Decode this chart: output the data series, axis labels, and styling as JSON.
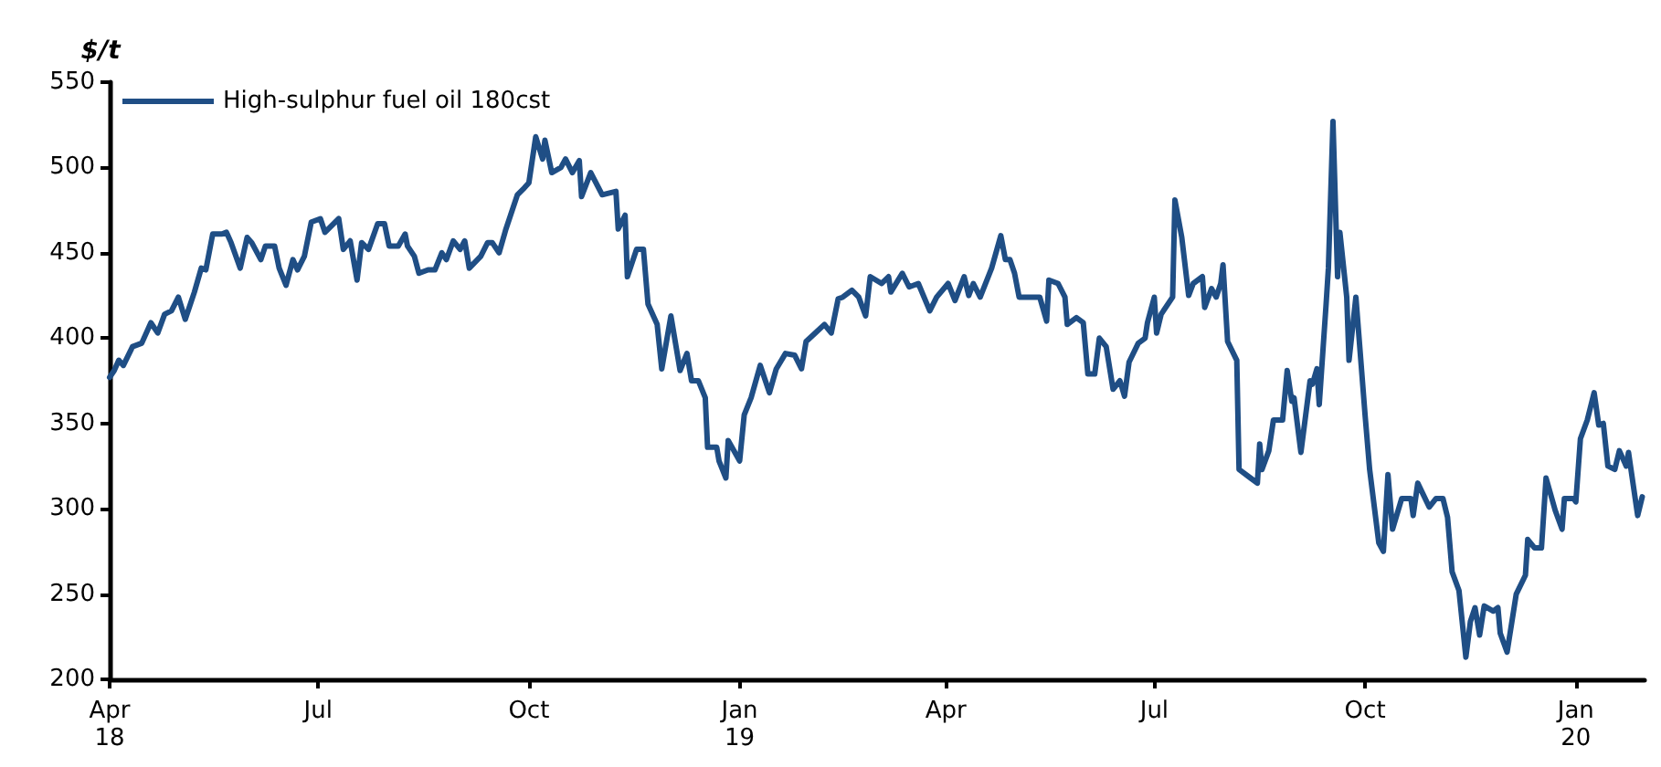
{
  "chart_data": {
    "type": "line",
    "ylabel": "$/t",
    "xlim": [
      "2018-04-01",
      "2020-01-31"
    ],
    "xticks": [
      {
        "value": "2018-04-01",
        "label": "Apr\n18"
      },
      {
        "value": "2018-07-01",
        "label": "Jul"
      },
      {
        "value": "2018-10-01",
        "label": "Oct"
      },
      {
        "value": "2019-01-01",
        "label": "Jan\n19"
      },
      {
        "value": "2019-04-01",
        "label": "Apr"
      },
      {
        "value": "2019-07-01",
        "label": "Jul"
      },
      {
        "value": "2019-10-01",
        "label": "Oct"
      },
      {
        "value": "2020-01-01",
        "label": "Jan\n20"
      }
    ],
    "ylim": [
      200,
      550
    ],
    "yticks": [
      200,
      250,
      300,
      350,
      400,
      450,
      500,
      550
    ],
    "grid": false,
    "legend": "top left",
    "marker": "none",
    "line_style": "solid",
    "series": [
      {
        "name": "High-sulphur fuel oil 180cst",
        "color": "#1f4e85",
        "x": [
          "2018-04-01",
          "2018-04-03",
          "2018-04-05",
          "2018-04-07",
          "2018-04-11",
          "2018-04-15",
          "2018-04-19",
          "2018-04-22",
          "2018-04-25",
          "2018-04-28",
          "2018-05-01",
          "2018-05-04",
          "2018-05-08",
          "2018-05-11",
          "2018-05-13",
          "2018-05-16",
          "2018-05-20",
          "2018-05-22",
          "2018-05-24",
          "2018-05-28",
          "2018-05-31",
          "2018-06-02",
          "2018-06-06",
          "2018-06-08",
          "2018-06-12",
          "2018-06-14",
          "2018-06-17",
          "2018-06-20",
          "2018-06-22",
          "2018-06-25",
          "2018-06-28",
          "2018-07-02",
          "2018-07-04",
          "2018-07-10",
          "2018-07-12",
          "2018-07-15",
          "2018-07-18",
          "2018-07-20",
          "2018-07-23",
          "2018-07-27",
          "2018-07-30",
          "2018-08-01",
          "2018-08-05",
          "2018-08-08",
          "2018-08-09",
          "2018-08-12",
          "2018-08-14",
          "2018-08-18",
          "2018-08-21",
          "2018-08-24",
          "2018-08-26",
          "2018-08-29",
          "2018-09-01",
          "2018-09-03",
          "2018-09-05",
          "2018-09-10",
          "2018-09-13",
          "2018-09-15",
          "2018-09-18",
          "2018-09-21",
          "2018-09-23",
          "2018-09-26",
          "2018-09-29",
          "2018-10-01",
          "2018-10-04",
          "2018-10-07",
          "2018-10-08",
          "2018-10-11",
          "2018-10-15",
          "2018-10-17",
          "2018-10-20",
          "2018-10-23",
          "2018-10-24",
          "2018-10-28",
          "2018-11-02",
          "2018-11-08",
          "2018-11-09",
          "2018-11-12",
          "2018-11-13",
          "2018-11-17",
          "2018-11-20",
          "2018-11-22",
          "2018-11-26",
          "2018-11-28",
          "2018-12-02",
          "2018-12-06",
          "2018-12-09",
          "2018-12-11",
          "2018-12-14",
          "2018-12-17",
          "2018-12-18",
          "2018-12-22",
          "2018-12-23",
          "2018-12-26",
          "2018-12-27",
          "2019-01-01",
          "2019-01-03",
          "2019-01-06",
          "2019-01-10",
          "2019-01-14",
          "2019-01-17",
          "2019-01-21",
          "2019-01-25",
          "2019-01-28",
          "2019-01-30",
          "2019-02-03",
          "2019-02-07",
          "2019-02-10",
          "2019-02-13",
          "2019-02-15",
          "2019-02-19",
          "2019-02-22",
          "2019-02-25",
          "2019-02-27",
          "2019-03-04",
          "2019-03-07",
          "2019-03-08",
          "2019-03-13",
          "2019-03-16",
          "2019-03-20",
          "2019-03-25",
          "2019-03-28",
          "2019-04-02",
          "2019-04-05",
          "2019-04-09",
          "2019-04-11",
          "2019-04-13",
          "2019-04-16",
          "2019-04-21",
          "2019-04-25",
          "2019-04-27",
          "2019-04-29",
          "2019-05-01",
          "2019-05-03",
          "2019-05-07",
          "2019-05-12",
          "2019-05-15",
          "2019-05-16",
          "2019-05-20",
          "2019-05-23",
          "2019-05-24",
          "2019-05-28",
          "2019-05-31",
          "2019-06-02",
          "2019-06-05",
          "2019-06-07",
          "2019-06-10",
          "2019-06-13",
          "2019-06-16",
          "2019-06-18",
          "2019-06-20",
          "2019-06-24",
          "2019-06-27",
          "2019-06-28",
          "2019-07-01",
          "2019-07-02",
          "2019-07-04",
          "2019-07-09",
          "2019-07-10",
          "2019-07-13",
          "2019-07-16",
          "2019-07-18",
          "2019-07-22",
          "2019-07-23",
          "2019-07-26",
          "2019-07-28",
          "2019-07-30",
          "2019-07-31",
          "2019-08-02",
          "2019-08-06",
          "2019-08-07",
          "2019-08-12",
          "2019-08-15",
          "2019-08-16",
          "2019-08-17",
          "2019-08-20",
          "2019-08-22",
          "2019-08-26",
          "2019-08-28",
          "2019-08-30",
          "2019-08-31",
          "2019-09-03",
          "2019-09-07",
          "2019-09-08",
          "2019-09-10",
          "2019-09-11",
          "2019-09-14",
          "2019-09-15",
          "2019-09-17",
          "2019-09-19",
          "2019-09-20",
          "2019-09-23",
          "2019-09-24",
          "2019-09-27",
          "2019-10-01",
          "2019-10-03",
          "2019-10-07",
          "2019-10-09",
          "2019-10-11",
          "2019-10-13",
          "2019-10-17",
          "2019-10-21",
          "2019-10-22",
          "2019-10-24",
          "2019-10-29",
          "2019-11-01",
          "2019-11-04",
          "2019-11-06",
          "2019-11-08",
          "2019-11-11",
          "2019-11-14",
          "2019-11-16",
          "2019-11-18",
          "2019-11-20",
          "2019-11-22",
          "2019-11-26",
          "2019-11-28",
          "2019-11-29",
          "2019-12-02",
          "2019-12-06",
          "2019-12-10",
          "2019-12-11",
          "2019-12-14",
          "2019-12-17",
          "2019-12-19",
          "2019-12-23",
          "2019-12-26",
          "2019-12-27",
          "2019-12-31",
          "2020-01-01",
          "2020-01-03",
          "2020-01-06",
          "2020-01-09",
          "2020-01-11",
          "2020-01-13",
          "2020-01-15",
          "2020-01-18",
          "2020-01-20",
          "2020-01-23",
          "2020-01-24",
          "2020-01-28",
          "2020-01-30"
        ],
        "values": [
          377,
          381,
          387,
          384,
          395,
          397,
          409,
          403,
          414,
          416,
          424,
          411,
          427,
          441,
          440,
          461,
          461,
          462,
          456,
          441,
          459,
          456,
          446,
          454,
          454,
          441,
          431,
          446,
          440,
          448,
          468,
          470,
          462,
          470,
          452,
          457,
          434,
          456,
          452,
          467,
          467,
          454,
          454,
          461,
          454,
          448,
          438,
          440,
          440,
          450,
          446,
          457,
          452,
          457,
          441,
          448,
          456,
          456,
          450,
          464,
          472,
          484,
          488,
          491,
          518,
          505,
          516,
          497,
          500,
          505,
          497,
          504,
          483,
          497,
          484,
          486,
          464,
          472,
          436,
          452,
          452,
          420,
          408,
          382,
          413,
          381,
          391,
          375,
          375,
          365,
          336,
          336,
          328,
          318,
          340,
          328,
          355,
          365,
          384,
          368,
          382,
          391,
          390,
          382,
          398,
          403,
          408,
          403,
          423,
          424,
          428,
          424,
          413,
          436,
          432,
          436,
          427,
          438,
          430,
          432,
          416,
          424,
          432,
          422,
          436,
          425,
          432,
          424,
          441,
          460,
          446,
          446,
          438,
          424,
          424,
          424,
          410,
          434,
          432,
          424,
          408,
          412,
          409,
          379,
          379,
          400,
          395,
          370,
          375,
          366,
          386,
          397,
          400,
          409,
          424,
          403,
          414,
          424,
          481,
          459,
          425,
          432,
          436,
          418,
          429,
          424,
          432,
          443,
          398,
          387,
          323,
          318,
          315,
          338,
          323,
          334,
          352,
          352,
          381,
          363,
          365,
          333,
          375,
          373,
          382,
          361,
          420,
          441,
          527,
          436,
          462,
          424,
          387,
          424,
          355,
          323,
          280,
          275,
          320,
          288,
          306,
          306,
          296,
          315,
          301,
          306,
          306,
          295,
          263,
          252,
          213,
          234,
          242,
          226,
          243,
          240,
          242,
          227,
          216,
          250,
          261,
          282,
          277,
          277,
          318,
          299,
          288,
          306,
          306,
          304,
          341,
          352,
          368,
          349,
          350,
          325,
          323,
          334,
          325,
          333,
          296,
          307
        ]
      }
    ]
  }
}
